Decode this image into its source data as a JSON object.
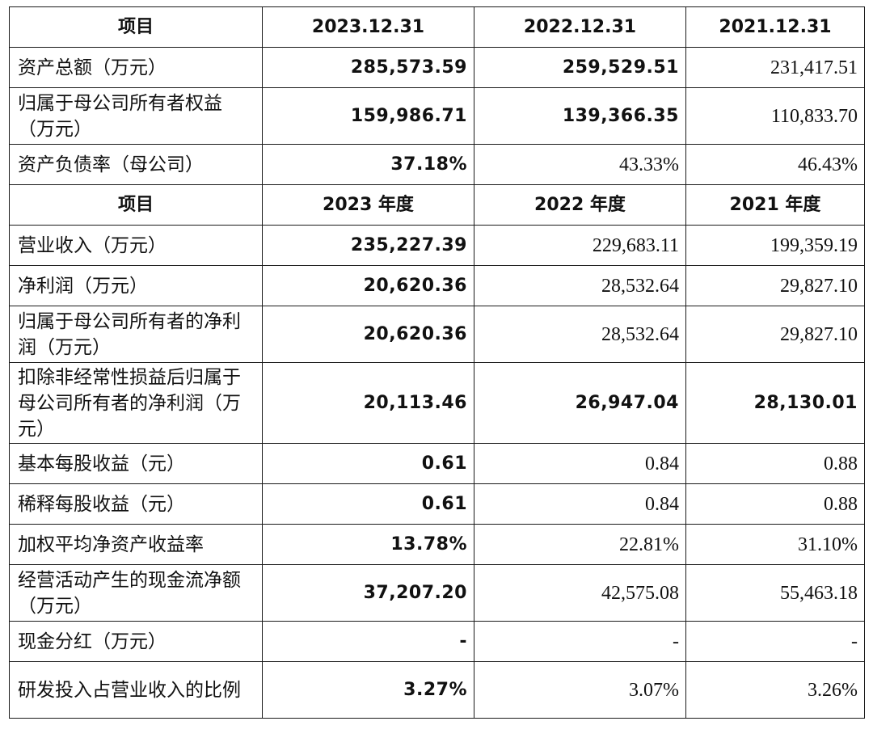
{
  "header_balance": {
    "item": "项目",
    "y2023": "2023.12.31",
    "y2022": "2022.12.31",
    "y2021": "2021.12.31"
  },
  "balance_rows": [
    {
      "label": "资产总额（万元）",
      "v2023": "285,573.59",
      "v2022": "259,529.51",
      "v2021": "231,417.51"
    },
    {
      "label": "归属于母公司所有者权益（万元）",
      "v2023": "159,986.71",
      "v2022": "139,366.35",
      "v2021": "110,833.70"
    },
    {
      "label": "资产负债率（母公司）",
      "v2023": "37.18%",
      "v2022": "43.33%",
      "v2021": "46.43%"
    }
  ],
  "header_income": {
    "item": "项目",
    "y2023": "2023 年度",
    "y2022": "2022 年度",
    "y2021": "2021 年度"
  },
  "income_rows": [
    {
      "label": "营业收入（万元）",
      "v2023": "235,227.39",
      "v2022": "229,683.11",
      "v2021": "199,359.19"
    },
    {
      "label": "净利润（万元）",
      "v2023": "20,620.36",
      "v2022": "28,532.64",
      "v2021": "29,827.10"
    },
    {
      "label": "归属于母公司所有者的净利润（万元）",
      "v2023": "20,620.36",
      "v2022": "28,532.64",
      "v2021": "29,827.10"
    },
    {
      "label": "扣除非经常性损益后归属于母公司所有者的净利润（万元）",
      "v2023": "20,113.46",
      "v2022": "26,947.04",
      "v2021": "28,130.01"
    },
    {
      "label": "基本每股收益（元）",
      "v2023": "0.61",
      "v2022": "0.84",
      "v2021": "0.88"
    },
    {
      "label": "稀释每股收益（元）",
      "v2023": "0.61",
      "v2022": "0.84",
      "v2021": "0.88"
    },
    {
      "label": "加权平均净资产收益率",
      "v2023": "13.78%",
      "v2022": "22.81%",
      "v2021": "31.10%"
    },
    {
      "label": "经营活动产生的现金流净额（万元）",
      "v2023": "37,207.20",
      "v2022": "42,575.08",
      "v2021": "55,463.18"
    },
    {
      "label": "现金分红（万元）",
      "v2023": "-",
      "v2022": "-",
      "v2021": "-"
    },
    {
      "label": "研发投入占营业收入的比例",
      "v2023": "3.27%",
      "v2022": "3.07%",
      "v2021": "3.26%"
    }
  ]
}
